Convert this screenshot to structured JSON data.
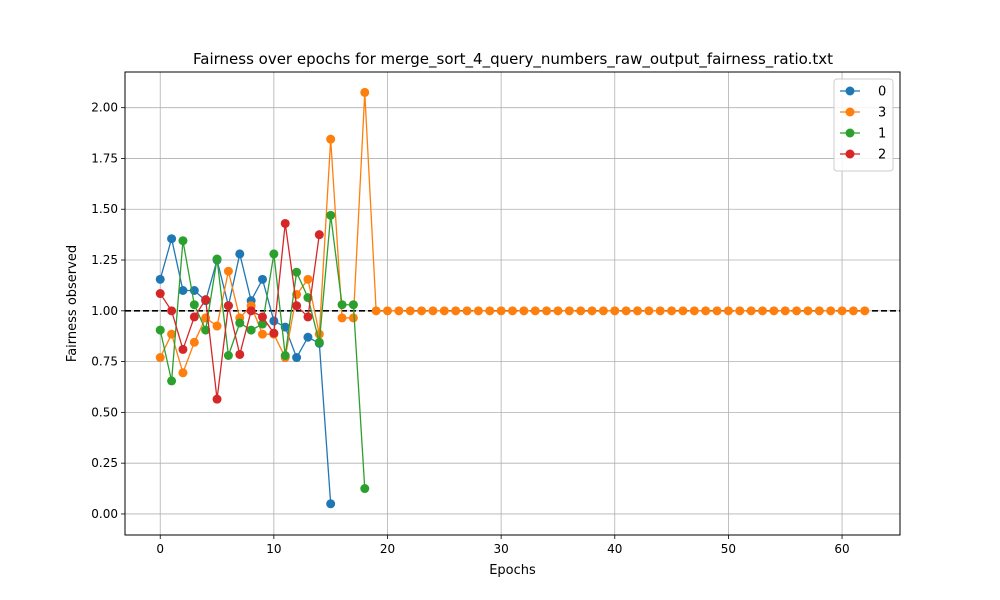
{
  "chart_data": {
    "type": "line",
    "title": "Fairness over epochs for merge_sort_4_query_numbers_raw_output_fairness_ratio.txt",
    "xlabel": "Epochs",
    "ylabel": "Fairness observed",
    "xlim": [
      -3.1,
      65.1
    ],
    "ylim": [
      -0.1036,
      2.1756
    ],
    "xticks": [
      0,
      10,
      20,
      30,
      40,
      50,
      60
    ],
    "xtick_labels": [
      "0",
      "10",
      "20",
      "30",
      "40",
      "50",
      "60"
    ],
    "yticks": [
      0.0,
      0.25,
      0.5,
      0.75,
      1.0,
      1.25,
      1.5,
      1.75,
      2.0
    ],
    "ytick_labels": [
      "0.00",
      "0.25",
      "0.50",
      "0.75",
      "1.00",
      "1.25",
      "1.50",
      "1.75",
      "2.00"
    ],
    "grid": true,
    "reference_line": {
      "y": 1.0,
      "style": "dashed",
      "color": "#000000"
    },
    "legend": {
      "position": "upper-right"
    },
    "series": [
      {
        "name": "0",
        "color": "#1f77b4",
        "x": [
          0,
          1,
          2,
          3,
          4,
          5,
          6,
          7,
          8,
          9,
          10,
          11,
          12,
          13,
          14,
          15
        ],
        "y": [
          1.155,
          1.355,
          1.1,
          1.1,
          1.05,
          1.25,
          1.025,
          1.28,
          1.05,
          1.155,
          0.95,
          0.92,
          0.77,
          0.87,
          0.84,
          0.05
        ]
      },
      {
        "name": "3",
        "color": "#ff7f0e",
        "x": [
          0,
          1,
          2,
          3,
          4,
          5,
          6,
          7,
          8,
          9,
          10,
          11,
          12,
          13,
          14,
          15,
          16,
          17,
          18,
          19,
          20,
          21,
          22,
          23,
          24,
          25,
          26,
          27,
          28,
          29,
          30,
          31,
          32,
          33,
          34,
          35,
          36,
          37,
          38,
          39,
          40,
          41,
          42,
          43,
          44,
          45,
          46,
          47,
          48,
          49,
          50,
          51,
          52,
          53,
          54,
          55,
          56,
          57,
          58,
          59,
          60,
          61,
          62
        ],
        "y": [
          0.77,
          0.885,
          0.695,
          0.845,
          0.965,
          0.925,
          1.195,
          0.965,
          1.025,
          0.885,
          0.885,
          0.77,
          1.08,
          1.155,
          0.885,
          1.845,
          0.965,
          0.965,
          2.075,
          1.0,
          1.0,
          1.0,
          1.0,
          1.0,
          1.0,
          1.0,
          1.0,
          1.0,
          1.0,
          1.0,
          1.0,
          1.0,
          1.0,
          1.0,
          1.0,
          1.0,
          1.0,
          1.0,
          1.0,
          1.0,
          1.0,
          1.0,
          1.0,
          1.0,
          1.0,
          1.0,
          1.0,
          1.0,
          1.0,
          1.0,
          1.0,
          1.0,
          1.0,
          1.0,
          1.0,
          1.0,
          1.0,
          1.0,
          1.0,
          1.0,
          1.0,
          1.0,
          1.0
        ]
      },
      {
        "name": "1",
        "color": "#2ca02c",
        "x": [
          0,
          1,
          2,
          3,
          4,
          5,
          6,
          7,
          8,
          9,
          10,
          11,
          12,
          13,
          14,
          15,
          16,
          17,
          18
        ],
        "y": [
          0.905,
          0.655,
          1.345,
          1.03,
          0.905,
          1.255,
          0.78,
          0.94,
          0.905,
          0.935,
          1.28,
          0.78,
          1.19,
          1.065,
          0.845,
          1.47,
          1.03,
          1.03,
          0.125
        ]
      },
      {
        "name": "2",
        "color": "#d62728",
        "x": [
          0,
          1,
          2,
          3,
          4,
          5,
          6,
          7,
          8,
          9,
          10,
          11,
          12,
          13,
          14
        ],
        "y": [
          1.085,
          1.0,
          0.81,
          0.97,
          1.055,
          0.565,
          1.025,
          0.785,
          1.0,
          0.97,
          0.89,
          1.43,
          1.025,
          0.97,
          1.375
        ]
      }
    ]
  }
}
